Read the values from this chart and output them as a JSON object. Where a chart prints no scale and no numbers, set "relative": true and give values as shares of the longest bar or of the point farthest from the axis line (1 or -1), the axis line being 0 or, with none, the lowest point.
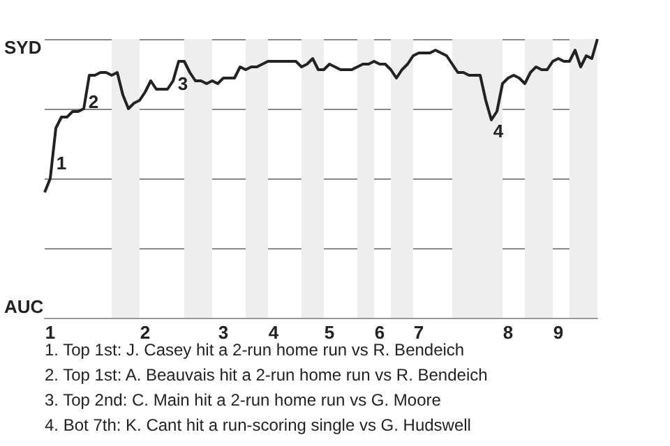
{
  "chart_data": {
    "type": "line",
    "relative": true,
    "categories": [
      null,
      "1",
      null,
      null,
      null,
      null,
      null,
      null,
      null,
      null,
      null,
      null,
      null,
      null,
      null,
      null,
      null,
      null,
      "2",
      null,
      null,
      null,
      null,
      null,
      null,
      null,
      null,
      null,
      null,
      null,
      null,
      null,
      "3",
      null,
      null,
      null,
      null,
      null,
      null,
      null,
      null,
      "4",
      null,
      null,
      null,
      null,
      null,
      null,
      null,
      null,
      null,
      "5",
      null,
      null,
      null,
      null,
      null,
      null,
      null,
      null,
      "6",
      null,
      null,
      null,
      null,
      null,
      null,
      "7",
      null,
      null,
      null,
      null,
      null,
      null,
      null,
      null,
      null,
      null,
      null,
      null,
      null,
      null,
      null,
      "8",
      null,
      null,
      null,
      null,
      null,
      null,
      null,
      null,
      "9",
      null,
      null,
      null,
      null,
      null,
      null,
      null
    ],
    "series": [
      {
        "color": "#222222",
        "values": [
          0.45,
          0.5,
          0.68,
          0.72,
          0.72,
          0.74,
          0.74,
          0.75,
          0.87,
          0.87,
          0.88,
          0.88,
          0.87,
          0.88,
          0.8,
          0.75,
          0.77,
          0.78,
          0.81,
          0.85,
          0.82,
          0.82,
          0.82,
          0.85,
          0.92,
          0.92,
          0.88,
          0.85,
          0.85,
          0.84,
          0.85,
          0.84,
          0.86,
          0.86,
          0.86,
          0.9,
          0.89,
          0.9,
          0.9,
          0.91,
          0.92,
          0.92,
          0.92,
          0.92,
          0.92,
          0.92,
          0.9,
          0.91,
          0.93,
          0.89,
          0.89,
          0.91,
          0.9,
          0.89,
          0.89,
          0.89,
          0.9,
          0.91,
          0.91,
          0.92,
          0.91,
          0.91,
          0.89,
          0.86,
          0.89,
          0.91,
          0.94,
          0.95,
          0.95,
          0.95,
          0.96,
          0.95,
          0.94,
          0.91,
          0.88,
          0.88,
          0.87,
          0.87,
          0.87,
          0.78,
          0.71,
          0.74,
          0.84,
          0.86,
          0.87,
          0.86,
          0.84,
          0.88,
          0.9,
          0.89,
          0.89,
          0.92,
          0.93,
          0.92,
          0.92,
          0.96,
          0.9,
          0.94,
          0.93,
          1
        ]
      }
    ],
    "grid": "y",
    "annotations": [
      "SYD",
      "AUC",
      "1",
      "2",
      "3",
      "4",
      "1. Top 1st: J. Casey hit a 2-run home run vs R. Bendeich",
      "2. Top 1st: A. Beauvais hit a 2-run home run vs R. Bendeich",
      "3. Top 2nd: C. Main hit a 2-run home run vs G. Moore",
      "4. Bot 7th: K. Cant hit a run-scoring single vs G. Hudswell"
    ]
  }
}
